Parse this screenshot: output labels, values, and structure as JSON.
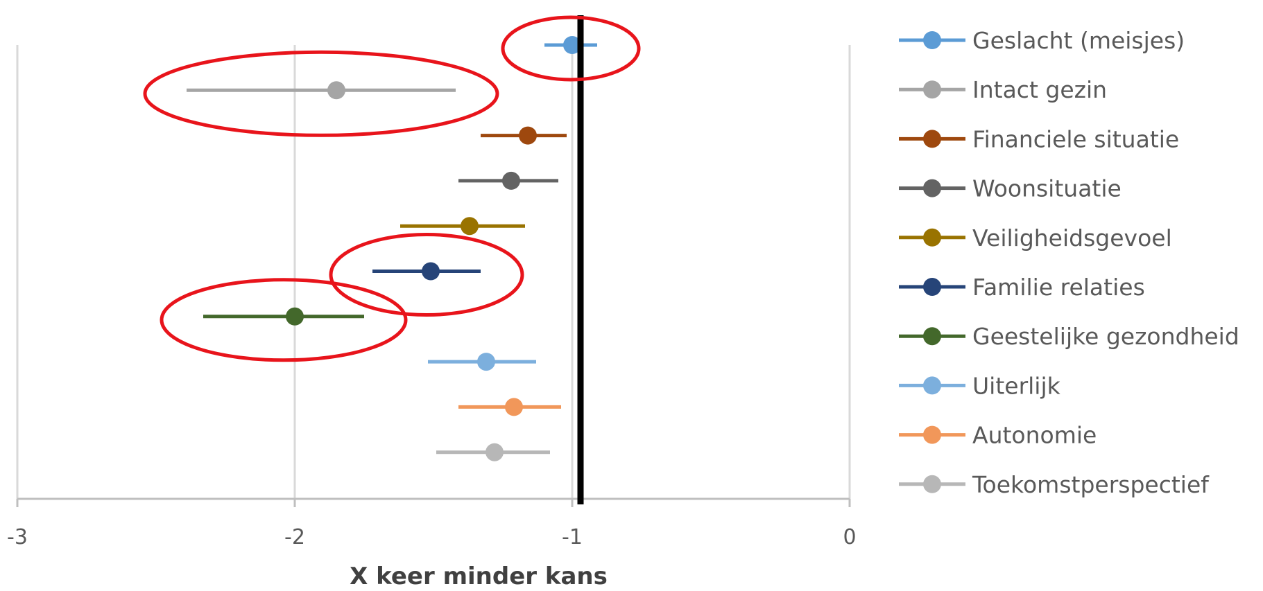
{
  "chart_data": {
    "type": "scatter",
    "subtype": "forest-plot",
    "title": "",
    "xlabel": "X keer minder kans",
    "ylabel": "",
    "xlim": [
      -3,
      0
    ],
    "xticks": [
      -3,
      -2,
      -1,
      0
    ],
    "xtick_labels": [
      "-3",
      "-2",
      "-1",
      "0"
    ],
    "grid": true,
    "legend_position": "right",
    "reference_line_x": -0.97,
    "series": [
      {
        "name": "Geslacht (meisjes)",
        "color": "#5B9BD5",
        "estimate": -1.0,
        "ci": [
          -1.1,
          -0.91
        ]
      },
      {
        "name": "Intact gezin",
        "color": "#A5A5A5",
        "estimate": -1.85,
        "ci": [
          -2.39,
          -1.42
        ]
      },
      {
        "name": "Financiele situatie",
        "color": "#9E480E",
        "estimate": -1.16,
        "ci": [
          -1.33,
          -1.02
        ]
      },
      {
        "name": "Woonsituatie",
        "color": "#636363",
        "estimate": -1.22,
        "ci": [
          -1.41,
          -1.05
        ]
      },
      {
        "name": "Veiligheidsgevoel",
        "color": "#997300",
        "estimate": -1.37,
        "ci": [
          -1.62,
          -1.17
        ]
      },
      {
        "name": "Familie relaties",
        "color": "#264478",
        "estimate": -1.51,
        "ci": [
          -1.72,
          -1.33
        ]
      },
      {
        "name": "Geestelijke gezondheid",
        "color": "#43682B",
        "estimate": -2.0,
        "ci": [
          -2.33,
          -1.75
        ]
      },
      {
        "name": "Uiterlijk",
        "color": "#7CAFDD",
        "estimate": -1.31,
        "ci": [
          -1.52,
          -1.13
        ]
      },
      {
        "name": "Autonomie",
        "color": "#F1975A",
        "estimate": -1.21,
        "ci": [
          -1.41,
          -1.04
        ]
      },
      {
        "name": "Toekomstperspectief",
        "color": "#B7B7B7",
        "estimate": -1.28,
        "ci": [
          -1.49,
          -1.08
        ]
      }
    ],
    "annotations": {
      "highlight_color": "#E8141B",
      "highlighted_series": [
        "Geslacht (meisjes)",
        "Intact gezin",
        "Familie relaties",
        "Geestelijke gezondheid"
      ]
    }
  }
}
